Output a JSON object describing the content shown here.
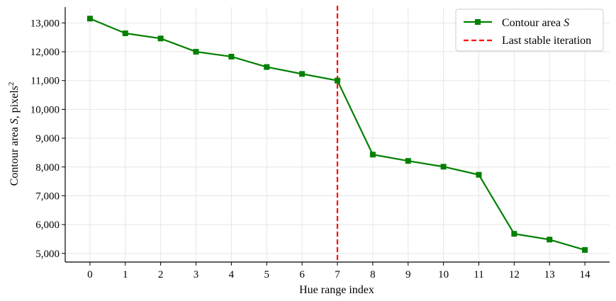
{
  "chart_data": {
    "type": "line",
    "x": [
      0,
      1,
      2,
      3,
      4,
      5,
      6,
      7,
      8,
      9,
      10,
      11,
      12,
      13,
      14
    ],
    "x_tick_labels": [
      "0",
      "1",
      "2",
      "3",
      "4",
      "5",
      "6",
      "7",
      "8",
      "9",
      "10",
      "11",
      "12",
      "13",
      "14"
    ],
    "xlim": [
      -0.7,
      14.7
    ],
    "ylim": [
      4700,
      13550
    ],
    "y_ticks": [
      5000,
      6000,
      7000,
      8000,
      9000,
      10000,
      11000,
      12000,
      13000
    ],
    "y_tick_labels": [
      "5,000",
      "6,000",
      "7,000",
      "8,000",
      "9,000",
      "10,000",
      "11,000",
      "12,000",
      "13,000"
    ],
    "series": [
      {
        "name": "Contour area S",
        "values": [
          13150,
          12640,
          12460,
          12000,
          11830,
          11470,
          11230,
          11000,
          8430,
          8210,
          8010,
          7730,
          5680,
          5480,
          5120
        ],
        "color": "#008000",
        "marker": "square"
      }
    ],
    "vline": {
      "x": 7,
      "name": "Last stable iteration",
      "color": "#ff0000",
      "style": "dashed"
    },
    "xlabel": "Hue range index",
    "ylabel": {
      "prefix": "Contour area ",
      "symbol": "S",
      "middle": ", pixels",
      "superscript": "2"
    },
    "legend": {
      "placement": "top-right",
      "entries": [
        {
          "prefix": "Contour area ",
          "symbol": "S"
        },
        {
          "prefix": "Last stable iteration",
          "symbol": ""
        }
      ]
    },
    "grid": true,
    "axis_color": "#000000",
    "grid_color": "#e6e6e6"
  }
}
